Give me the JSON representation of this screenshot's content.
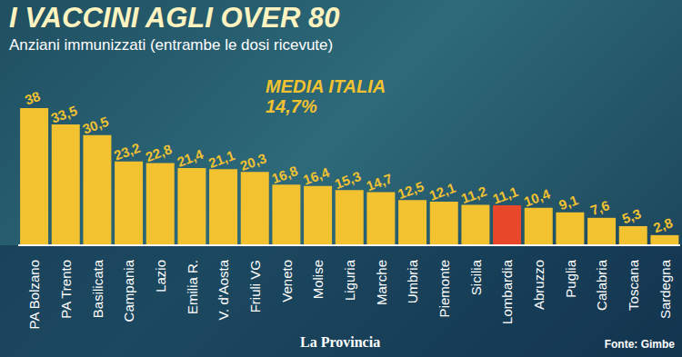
{
  "chart_data": {
    "type": "bar",
    "title": "I VACCINI AGLI OVER 80",
    "subtitle": "Anziani immunizzati (entrambe le dosi ricevute)",
    "annotations": [
      "MEDIA ITALIA",
      "14,7%"
    ],
    "source": "Fonte: Gimbe",
    "publisher": "La Provincia",
    "categories": [
      "PA Bolzano",
      "PA Trento",
      "Basilicata",
      "Campania",
      "Lazio",
      "Emilia R.",
      "V. d'Aosta",
      "Friuli VG",
      "Veneto",
      "Molise",
      "Liguria",
      "Marche",
      "Umbria",
      "Piemonte",
      "Sicilia",
      "Lombardia",
      "Abruzzo",
      "Puglia",
      "Calabria",
      "Toscana",
      "Sardegna"
    ],
    "values": [
      38,
      33.5,
      30.5,
      23.2,
      22.8,
      21.4,
      21.1,
      20.3,
      16.8,
      16.4,
      15.3,
      14.7,
      12.5,
      12.1,
      11.2,
      11.1,
      10.4,
      9.1,
      7.6,
      5.3,
      2.8
    ],
    "value_labels": [
      "38",
      "33,5",
      "30,5",
      "23,2",
      "22,8",
      "21,4",
      "21,1",
      "20,3",
      "16,8",
      "16,4",
      "15,3",
      "14,7",
      "12,5",
      "12,1",
      "11,2",
      "11,1",
      "10,4",
      "9,1",
      "7,6",
      "5,3",
      "2,8"
    ],
    "colors": [
      "#f2c230",
      "#f2c230",
      "#f2c230",
      "#f2c230",
      "#f2c230",
      "#f2c230",
      "#f2c230",
      "#f2c230",
      "#f2c230",
      "#f2c230",
      "#f2c230",
      "#f2c230",
      "#f2c230",
      "#f2c230",
      "#f2c230",
      "#e8472a",
      "#f2c230",
      "#f2c230",
      "#f2c230",
      "#f2c230",
      "#f2c230"
    ],
    "ylim": [
      0,
      38
    ],
    "data_labels": true,
    "tick_labels": "x",
    "grid": false
  }
}
